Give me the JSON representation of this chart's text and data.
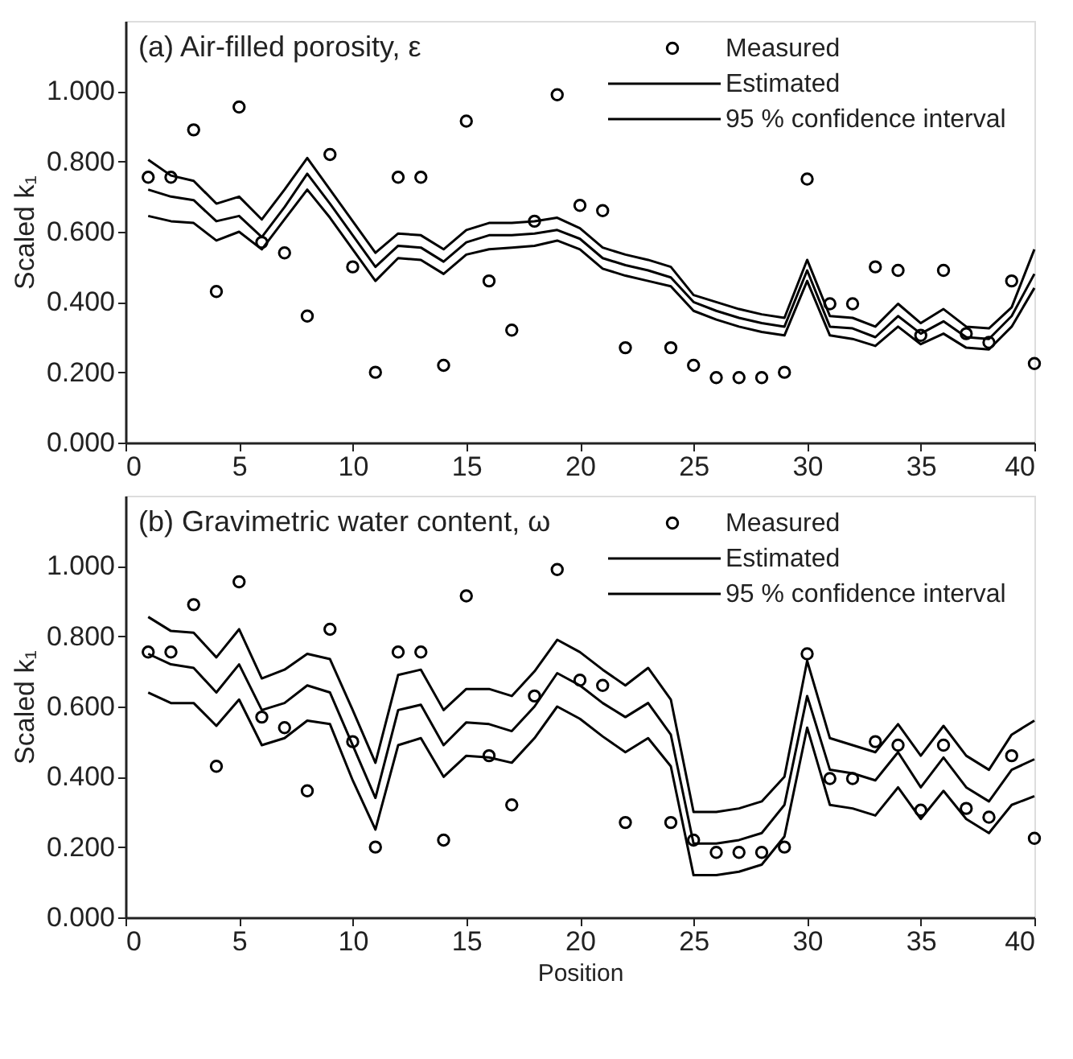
{
  "chart_data": [
    {
      "type": "line",
      "title": "(a) Air-filled porosity, ε",
      "ylabel": "Scaled k₁",
      "x": [
        1,
        2,
        3,
        4,
        5,
        6,
        7,
        8,
        9,
        10,
        11,
        12,
        13,
        14,
        15,
        16,
        17,
        18,
        19,
        20,
        21,
        22,
        23,
        24,
        25,
        26,
        27,
        28,
        29,
        30,
        31,
        32,
        33,
        34,
        35,
        36,
        37,
        38,
        39,
        40
      ],
      "xlim": [
        0,
        40
      ],
      "xticks": [
        0,
        5,
        10,
        15,
        20,
        25,
        30,
        35,
        40
      ],
      "ylim": [
        0,
        1.2
      ],
      "yticks": [
        {
          "value": 0,
          "label": "0.000"
        },
        {
          "value": 0.2,
          "label": "0.200"
        },
        {
          "value": 0.4,
          "label": "0.400"
        },
        {
          "value": 0.6,
          "label": "0.600"
        },
        {
          "value": 0.8,
          "label": "0.800"
        },
        {
          "value": 1,
          "label": "1.000"
        }
      ],
      "legend": "top right",
      "grid": false,
      "series": [
        {
          "name": "Measured",
          "type": "scatter",
          "marker": "circle",
          "color": "#000000",
          "values": [
            0.755,
            0.755,
            0.89,
            0.43,
            0.955,
            0.57,
            0.54,
            0.36,
            0.82,
            0.5,
            0.2,
            0.755,
            0.755,
            0.22,
            0.915,
            0.46,
            0.32,
            0.63,
            0.99,
            0.675,
            0.66,
            0.27,
            null,
            0.27,
            0.22,
            0.185,
            0.185,
            0.185,
            0.2,
            0.75,
            0.395,
            0.395,
            0.5,
            0.49,
            0.305,
            0.49,
            0.31,
            0.285,
            0.46,
            0.225
          ]
        },
        {
          "name": "Estimated",
          "color": "#000000",
          "values": [
            0.72,
            0.7,
            0.69,
            0.63,
            0.645,
            0.585,
            0.67,
            0.765,
            0.68,
            0.59,
            0.5,
            0.56,
            0.555,
            0.515,
            0.57,
            0.59,
            0.59,
            0.595,
            0.605,
            0.58,
            0.525,
            0.505,
            0.49,
            0.47,
            0.4,
            0.375,
            0.355,
            0.34,
            0.33,
            0.49,
            0.33,
            0.325,
            0.3,
            0.36,
            0.31,
            0.345,
            0.3,
            0.295,
            0.36,
            0.48
          ]
        },
        {
          "name": "95 % confidence interval",
          "color": "#000000",
          "values": [
            0.805,
            0.76,
            0.745,
            0.68,
            0.7,
            0.635,
            0.72,
            0.81,
            0.72,
            0.63,
            0.54,
            0.595,
            0.59,
            0.55,
            0.605,
            0.625,
            0.625,
            0.63,
            0.64,
            0.61,
            0.555,
            0.535,
            0.52,
            0.5,
            0.42,
            0.4,
            0.38,
            0.365,
            0.355,
            0.52,
            0.36,
            0.355,
            0.33,
            0.395,
            0.34,
            0.38,
            0.33,
            0.325,
            0.385,
            0.55
          ]
        },
        {
          "color": "#000000",
          "values": [
            0.645,
            0.63,
            0.625,
            0.575,
            0.6,
            0.55,
            0.635,
            0.72,
            0.64,
            0.55,
            0.46,
            0.525,
            0.52,
            0.48,
            0.535,
            0.55,
            0.555,
            0.56,
            0.575,
            0.55,
            0.495,
            0.475,
            0.46,
            0.445,
            0.375,
            0.35,
            0.33,
            0.315,
            0.305,
            0.46,
            0.305,
            0.295,
            0.275,
            0.33,
            0.28,
            0.31,
            0.27,
            0.265,
            0.33,
            0.44
          ]
        }
      ]
    },
    {
      "type": "line",
      "title": "(b) Gravimetric water content, ω",
      "xlabel": "Position",
      "ylabel": "Scaled k₁",
      "x": [
        1,
        2,
        3,
        4,
        5,
        6,
        7,
        8,
        9,
        10,
        11,
        12,
        13,
        14,
        15,
        16,
        17,
        18,
        19,
        20,
        21,
        22,
        23,
        24,
        25,
        26,
        27,
        28,
        29,
        30,
        31,
        32,
        33,
        34,
        35,
        36,
        37,
        38,
        39,
        40
      ],
      "xlim": [
        0,
        40
      ],
      "xticks": [
        0,
        5,
        10,
        15,
        20,
        25,
        30,
        35,
        40
      ],
      "ylim": [
        0,
        1.2
      ],
      "yticks": [
        {
          "value": 0,
          "label": "0.000"
        },
        {
          "value": 0.2,
          "label": "0.200"
        },
        {
          "value": 0.4,
          "label": "0.400"
        },
        {
          "value": 0.6,
          "label": "0.600"
        },
        {
          "value": 0.8,
          "label": "0.800"
        },
        {
          "value": 1,
          "label": "1.000"
        }
      ],
      "legend": "top right",
      "grid": false,
      "series": [
        {
          "name": "Measured",
          "type": "scatter",
          "marker": "circle",
          "color": "#000000",
          "values": [
            0.755,
            0.755,
            0.89,
            0.43,
            0.955,
            0.57,
            0.54,
            0.36,
            0.82,
            0.5,
            0.2,
            0.755,
            0.755,
            0.22,
            0.915,
            0.46,
            0.32,
            0.63,
            0.99,
            0.675,
            0.66,
            0.27,
            null,
            0.27,
            0.22,
            0.185,
            0.185,
            0.185,
            0.2,
            0.75,
            0.395,
            0.395,
            0.5,
            0.49,
            0.305,
            0.49,
            0.31,
            0.285,
            0.46,
            0.225
          ]
        },
        {
          "name": "Estimated",
          "color": "#000000",
          "values": [
            0.75,
            0.72,
            0.71,
            0.64,
            0.72,
            0.59,
            0.61,
            0.66,
            0.64,
            0.49,
            0.34,
            0.59,
            0.605,
            0.49,
            0.555,
            0.55,
            0.53,
            0.6,
            0.695,
            0.66,
            0.61,
            0.57,
            0.61,
            0.52,
            0.21,
            0.21,
            0.22,
            0.24,
            0.32,
            0.63,
            0.42,
            0.41,
            0.39,
            0.47,
            0.37,
            0.455,
            0.37,
            0.33,
            0.42,
            0.45
          ]
        },
        {
          "name": "95 % confidence interval",
          "color": "#000000",
          "values": [
            0.855,
            0.815,
            0.81,
            0.74,
            0.82,
            0.68,
            0.705,
            0.75,
            0.735,
            0.59,
            0.44,
            0.69,
            0.705,
            0.59,
            0.65,
            0.65,
            0.63,
            0.7,
            0.79,
            0.755,
            0.705,
            0.66,
            0.71,
            0.62,
            0.3,
            0.3,
            0.31,
            0.33,
            0.4,
            0.73,
            0.51,
            0.49,
            0.47,
            0.55,
            0.46,
            0.545,
            0.46,
            0.42,
            0.52,
            0.56
          ]
        },
        {
          "color": "#000000",
          "values": [
            0.64,
            0.61,
            0.61,
            0.545,
            0.62,
            0.49,
            0.51,
            0.56,
            0.55,
            0.39,
            0.25,
            0.49,
            0.51,
            0.4,
            0.46,
            0.455,
            0.44,
            0.51,
            0.6,
            0.565,
            0.515,
            0.47,
            0.51,
            0.43,
            0.12,
            0.12,
            0.13,
            0.15,
            0.23,
            0.54,
            0.32,
            0.31,
            0.29,
            0.37,
            0.28,
            0.36,
            0.28,
            0.24,
            0.32,
            0.345
          ]
        }
      ]
    }
  ]
}
